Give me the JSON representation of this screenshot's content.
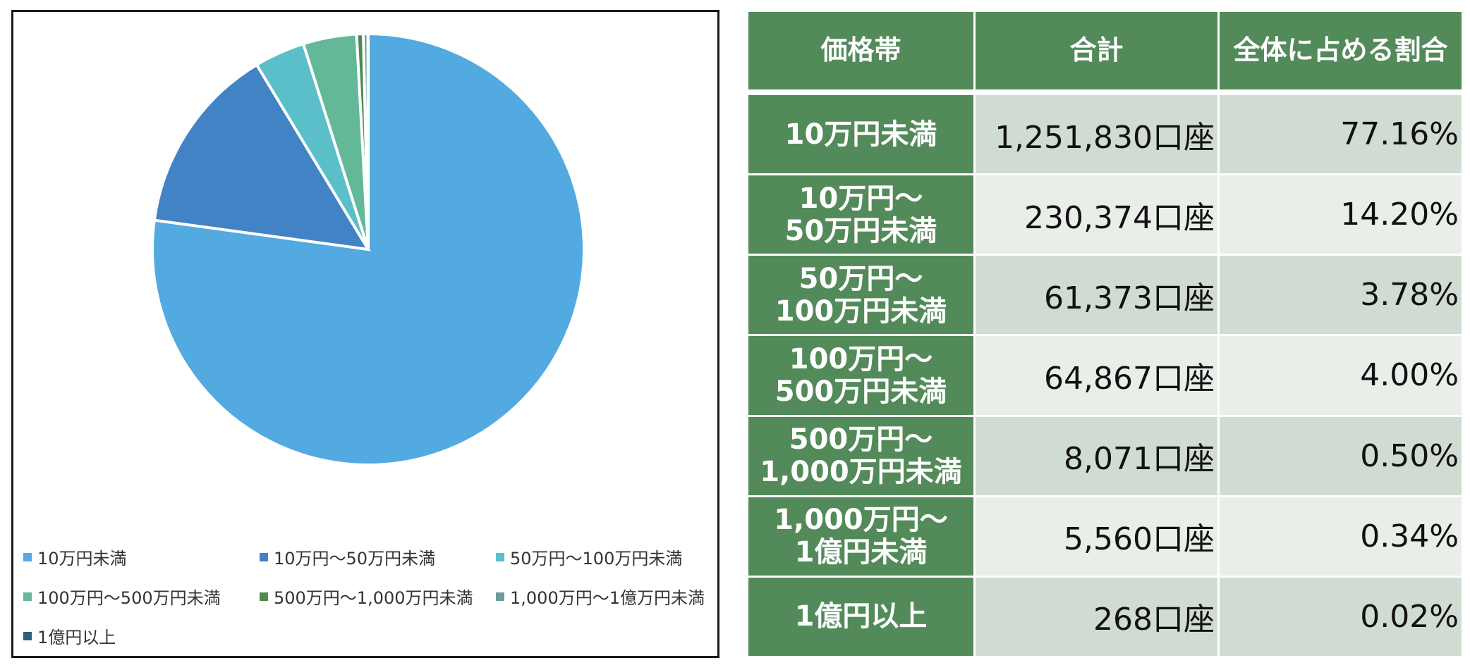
{
  "chart_data": {
    "type": "pie",
    "categories": [
      "10万円未満",
      "10万円～50万円未満",
      "50万円～100万円未満",
      "100万円～500万円未満",
      "500万円～1,000万円未満",
      "1,000万円～1億万円未満",
      "1億円以上"
    ],
    "values": [
      77.16,
      14.2,
      3.78,
      4.0,
      0.5,
      0.34,
      0.02
    ],
    "colors": [
      "#52aae0",
      "#4183c4",
      "#5bbfc9",
      "#63b897",
      "#4f8a4f",
      "#6c9c9c",
      "#2a5f7f"
    ],
    "legend_position": "bottom",
    "start_angle": "12 o'clock",
    "direction": "clockwise"
  },
  "table": {
    "headers": [
      "価格帯",
      "合計",
      "全体に占める割合"
    ],
    "rows": [
      {
        "label_lines": [
          "10万円未満"
        ],
        "total": "1,251,830口座",
        "share": "77.16%"
      },
      {
        "label_lines": [
          "10万円～",
          "50万円未満"
        ],
        "total": "230,374口座",
        "share": "14.20%"
      },
      {
        "label_lines": [
          "50万円～",
          "100万円未満"
        ],
        "total": "61,373口座",
        "share": "3.78%"
      },
      {
        "label_lines": [
          "100万円～",
          "500万円未満"
        ],
        "total": "64,867口座",
        "share": "4.00%"
      },
      {
        "label_lines": [
          "500万円～",
          "1,000万円未満"
        ],
        "total": "8,071口座",
        "share": "0.50%"
      },
      {
        "label_lines": [
          "1,000万円～",
          "1億円未満"
        ],
        "total": "5,560口座",
        "share": "0.34%"
      },
      {
        "label_lines": [
          "1億円以上"
        ],
        "total": "268口座",
        "share": "0.02%"
      }
    ]
  }
}
